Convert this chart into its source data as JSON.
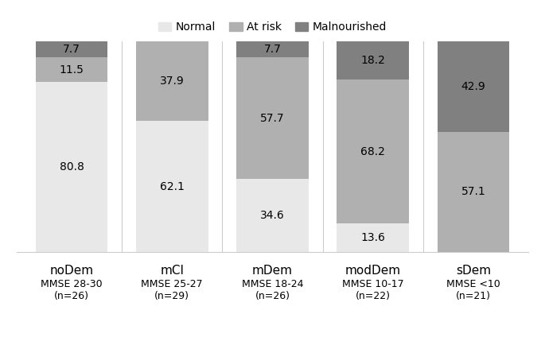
{
  "categories": [
    "noDem",
    "mCI",
    "mDem",
    "modDem",
    "sDem"
  ],
  "subtitles_line1": [
    "MMSE 28-30",
    "MMSE 25-27",
    "MMSE 18-24",
    "MMSE 10-17",
    "MMSE <10"
  ],
  "subtitles_line2": [
    "(n=26)",
    "(n=29)",
    "(n=26)",
    "(n=22)",
    "(n=21)"
  ],
  "normal": [
    80.8,
    62.1,
    34.6,
    13.6,
    0.0
  ],
  "at_risk": [
    11.5,
    37.9,
    57.7,
    68.2,
    57.1
  ],
  "malnourished": [
    7.7,
    0.0,
    7.7,
    18.2,
    42.9
  ],
  "color_normal": "#e8e8e8",
  "color_at_risk": "#b0b0b0",
  "color_malnourished": "#808080",
  "legend_labels": [
    "Normal",
    "At risk",
    "Malnourished"
  ],
  "bar_width": 0.72,
  "ylim": [
    0,
    100
  ],
  "fontsize_cat": 11,
  "fontsize_sub": 9,
  "fontsize_value": 10,
  "fontsize_legend": 10
}
